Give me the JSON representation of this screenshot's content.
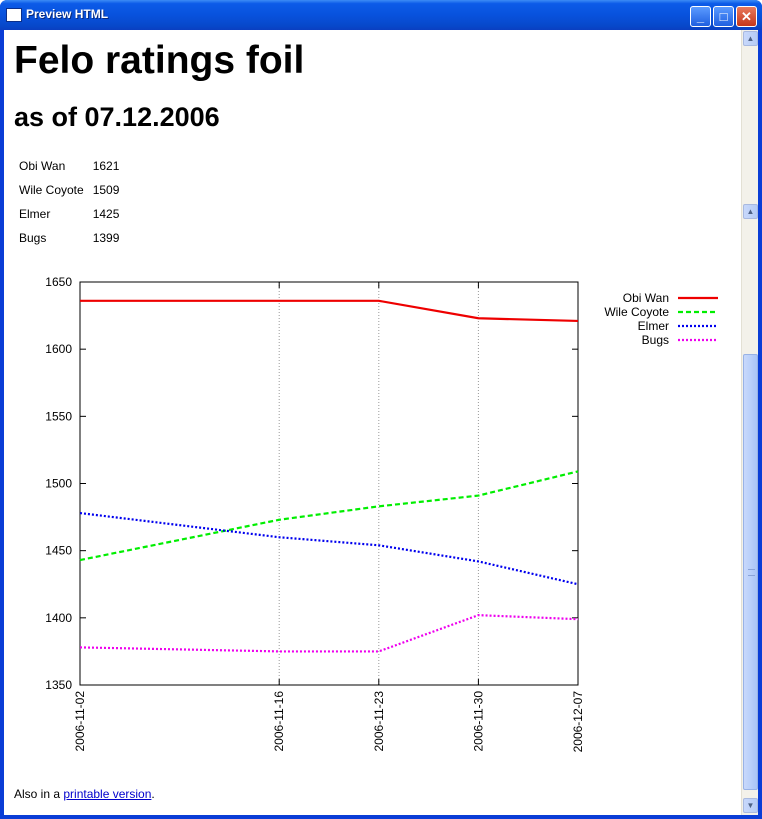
{
  "window": {
    "title": "Preview HTML",
    "minimize_label": "_",
    "maximize_label": "□",
    "close_label": "✕"
  },
  "page": {
    "title": "Felo ratings foil",
    "subtitle": "as of 07.12.2006"
  },
  "ratings": [
    {
      "name": "Obi Wan",
      "rating": "1621"
    },
    {
      "name": "Wile Coyote",
      "rating": "1509"
    },
    {
      "name": "Elmer",
      "rating": "1425"
    },
    {
      "name": "Bugs",
      "rating": "1399"
    }
  ],
  "footer": {
    "prefix": "Also in a ",
    "link_text": "printable version",
    "suffix": "."
  },
  "chart_data": {
    "type": "line",
    "x": [
      "2006-11-02",
      "2006-11-16",
      "2006-11-23",
      "2006-11-30",
      "2006-12-07"
    ],
    "ylim": [
      1350,
      1650
    ],
    "yticks": [
      1350,
      1400,
      1450,
      1500,
      1550,
      1600,
      1650
    ],
    "grid": "vertical dotted lines at x ticks",
    "legend_position": "top-right outside plot",
    "series": [
      {
        "name": "Obi Wan",
        "color": "#ee0000",
        "dash": "solid",
        "values": [
          1636,
          1636,
          1636,
          1623,
          1621
        ]
      },
      {
        "name": "Wile Coyote",
        "color": "#00ee00",
        "dash": "dashed",
        "values": [
          1443,
          1473,
          1483,
          1491,
          1509
        ]
      },
      {
        "name": "Elmer",
        "color": "#0000ee",
        "dash": "dotted",
        "values": [
          1478,
          1460,
          1454,
          1442,
          1425
        ]
      },
      {
        "name": "Bugs",
        "color": "#ee00ee",
        "dash": "dotted",
        "values": [
          1378,
          1375,
          1375,
          1402,
          1399
        ]
      }
    ]
  }
}
